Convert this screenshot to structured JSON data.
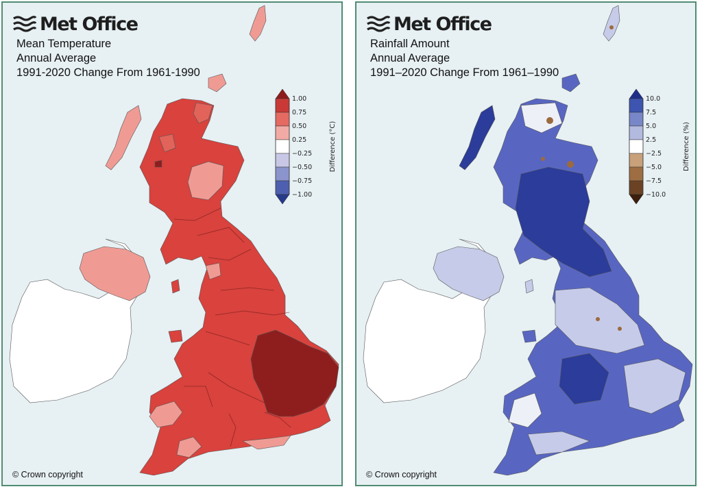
{
  "brand": "Met Office",
  "panels": [
    {
      "logo_text": "Met Office",
      "title_lines": [
        "Mean Temperature",
        "Annual Average",
        "1991-2020 Change From 1961-1990"
      ],
      "legend": {
        "axis_label": "Difference (°C)",
        "ticks": [
          "1.00",
          "0.75",
          "0.50",
          "0.25",
          "−0.25",
          "−0.50",
          "−0.75",
          "−1.00"
        ],
        "colors": [
          "#8e1b1b",
          "#c93a37",
          "#e56a62",
          "#f2aba4",
          "#ffffff",
          "#c8c8e6",
          "#8b94cc",
          "#4e5fb0",
          "#273a8a"
        ]
      },
      "copyright": "© Crown copyright"
    },
    {
      "logo_text": "Met Office",
      "title_lines": [
        "Rainfall Amount",
        "Annual Average",
        "1991–2020 Change From 1961–1990"
      ],
      "legend": {
        "axis_label": "Difference (%)",
        "ticks": [
          "10.0",
          "7.5",
          "5.0",
          "2.5",
          "−2.5",
          "−5.0",
          "−7.5",
          "−10.0"
        ],
        "colors": [
          "#1e2f8a",
          "#3d55b0",
          "#7887c8",
          "#b3bae0",
          "#ffffff",
          "#c8a07a",
          "#9e6d42",
          "#6b4324",
          "#3b1e0d"
        ]
      },
      "copyright": "© Crown copyright"
    }
  ],
  "map_colors": {
    "sea": "#e7f0f3",
    "ireland": "#ffffff",
    "temp_base": "#d9423d",
    "temp_light": "#ef9b94",
    "temp_mid": "#e2635a",
    "temp_dark": "#8e1e1e",
    "rain_base": "#5866c2",
    "rain_dark": "#2b3c9a",
    "rain_light": "#c6cbe9",
    "rain_white": "#eef0f8",
    "rain_brown": "#9c6a3d"
  }
}
